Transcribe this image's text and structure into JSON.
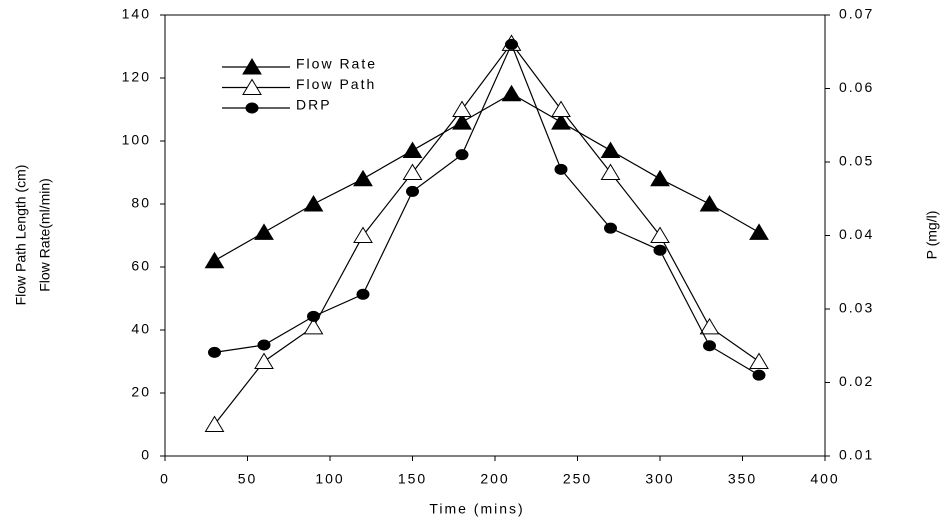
{
  "chart_data": {
    "type": "line",
    "x_label": "Time (mins)",
    "y_label": [
      "Flow Path Length (cm)",
      "Flow Rate(ml/min)"
    ],
    "y2_label": "P (mg/l)",
    "x": [
      30,
      60,
      90,
      120,
      150,
      180,
      210,
      240,
      270,
      300,
      330,
      360
    ],
    "xlim": [
      0,
      400
    ],
    "xticks": [
      0,
      50,
      100,
      150,
      200,
      250,
      300,
      350,
      400
    ],
    "ylim": [
      0,
      140
    ],
    "yticks": [
      0,
      20,
      40,
      60,
      80,
      100,
      120,
      140
    ],
    "y2lim": [
      0.01,
      0.07
    ],
    "y2ticks": [
      0.01,
      0.02,
      0.03,
      0.04,
      0.05,
      0.06,
      0.07
    ],
    "series": [
      {
        "name": "Flow Rate",
        "color": "#000000",
        "marker": "triangle",
        "filled": true,
        "values": [
          62,
          71,
          80,
          88,
          97,
          106,
          115,
          106,
          97,
          88,
          80,
          71
        ]
      },
      {
        "name": "Flow Path",
        "color": "#000000",
        "marker": "triangle",
        "filled": false,
        "values": [
          10,
          30,
          41,
          70,
          90,
          110,
          131,
          110,
          90,
          70,
          41,
          30
        ]
      },
      {
        "name": "DRP",
        "color": "#000000",
        "marker": "circle",
        "filled": true,
        "axis": "y2",
        "values": [
          0.0241,
          0.0251,
          0.029,
          0.032,
          0.046,
          0.051,
          0.066,
          0.049,
          0.041,
          0.038,
          0.025,
          0.021
        ]
      }
    ]
  }
}
